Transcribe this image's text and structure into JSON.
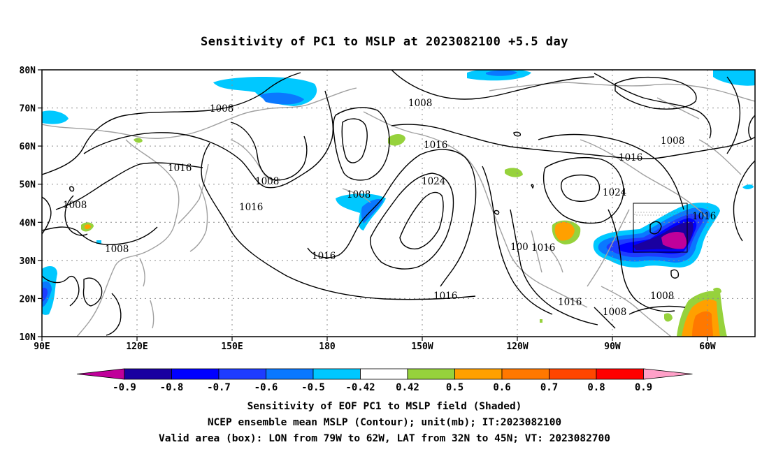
{
  "title": "Sensitivity of PC1 to MSLP at 2023082100 +5.5 day",
  "axes": {
    "lat_ticks": [
      "80N",
      "70N",
      "60N",
      "50N",
      "40N",
      "30N",
      "20N",
      "10N"
    ],
    "lon_ticks": [
      "90E",
      "120E",
      "150E",
      "180",
      "150W",
      "120W",
      "90W",
      "60W"
    ]
  },
  "contour_labels": [
    {
      "text": "1008",
      "name": "isobar-label-1008-a"
    },
    {
      "text": "1008",
      "name": "isobar-label-1008-b"
    },
    {
      "text": "1016",
      "name": "isobar-label-1016-a"
    },
    {
      "text": "1008",
      "name": "isobar-label-1008-c"
    },
    {
      "text": "1016",
      "name": "isobar-label-1016-b"
    },
    {
      "text": "1008",
      "name": "isobar-label-1008-d"
    },
    {
      "text": "1008",
      "name": "isobar-label-1008-e"
    },
    {
      "text": "1016",
      "name": "isobar-label-1016-c"
    },
    {
      "text": "1008",
      "name": "isobar-label-1008-f"
    },
    {
      "text": "1016",
      "name": "isobar-label-1016-d"
    },
    {
      "text": "1024",
      "name": "isobar-label-1024-a"
    },
    {
      "text": "1016",
      "name": "isobar-label-1016-e"
    },
    {
      "text": "100",
      "name": "isobar-label-100"
    },
    {
      "text": "1016",
      "name": "isobar-label-1016-f"
    },
    {
      "text": "1016",
      "name": "isobar-label-1016-g"
    },
    {
      "text": "1008",
      "name": "isobar-label-1008-g"
    },
    {
      "text": "1016",
      "name": "isobar-label-1016-h"
    },
    {
      "text": "1024",
      "name": "isobar-label-1024-b"
    },
    {
      "text": "1016",
      "name": "isobar-label-1016-i"
    },
    {
      "text": "1008",
      "name": "isobar-label-1008-h"
    },
    {
      "text": "1008",
      "name": "isobar-label-1008-i"
    }
  ],
  "colorbar": {
    "labels": [
      "-0.9",
      "-0.8",
      "-0.7",
      "-0.6",
      "-0.5",
      "-0.42",
      "0.42",
      "0.5",
      "0.6",
      "0.7",
      "0.8",
      "0.9"
    ],
    "colors": [
      "#1a00a0",
      "#0000ff",
      "#1e3cff",
      "#0a78ff",
      "#00c8ff",
      "#ffffff",
      "#96d23c",
      "#ffa000",
      "#ff7800",
      "#ff4600",
      "#ff0000"
    ],
    "low_color": "#c0009a",
    "high_color": "#ffa0c8"
  },
  "caption": {
    "line1": "Sensitivity of EOF PC1 to MSLP field (Shaded)",
    "line2": "NCEP ensemble mean MSLP (Contour); unit(mb); IT:2023082100",
    "line3": "Valid area (box): LON from 79W to 62W, LAT from 32N to 45N; VT: 2023082700"
  }
}
